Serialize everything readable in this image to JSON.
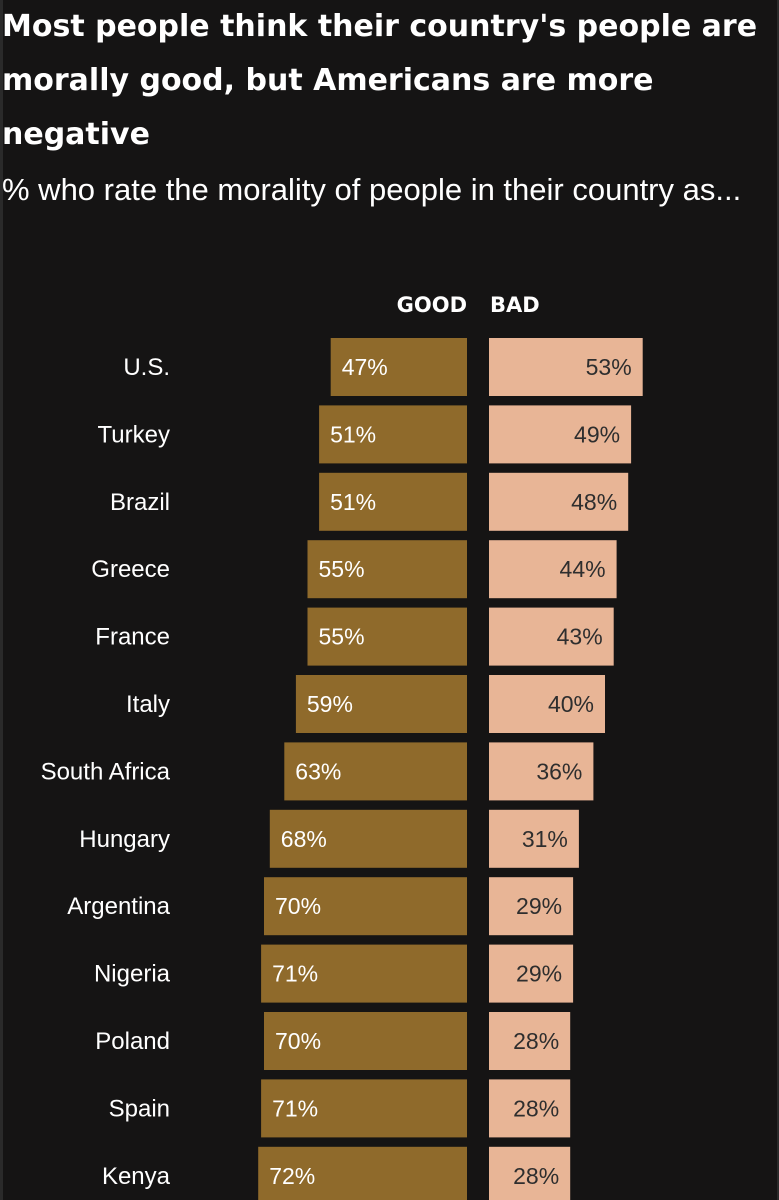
{
  "chart_data": {
    "type": "bar",
    "title": "Most people think their country's people are morally good, but Americans are more negative",
    "subtitle": "% who rate the morality of people in their country as...",
    "categories": [
      "U.S.",
      "Turkey",
      "Brazil",
      "Greece",
      "France",
      "Italy",
      "South Africa",
      "Hungary",
      "Argentina",
      "Nigeria",
      "Poland",
      "Spain",
      "Kenya"
    ],
    "series": [
      {
        "name": "GOOD",
        "color": "#8f6a2b",
        "values": [
          47,
          51,
          51,
          55,
          55,
          59,
          63,
          68,
          70,
          71,
          70,
          71,
          72
        ]
      },
      {
        "name": "BAD",
        "color": "#e8b596",
        "values": [
          53,
          49,
          48,
          44,
          43,
          40,
          36,
          31,
          29,
          29,
          28,
          28,
          28
        ]
      }
    ],
    "value_suffix": "%",
    "orientation": "horizontal-diverging",
    "legend": "column-headers-top"
  }
}
